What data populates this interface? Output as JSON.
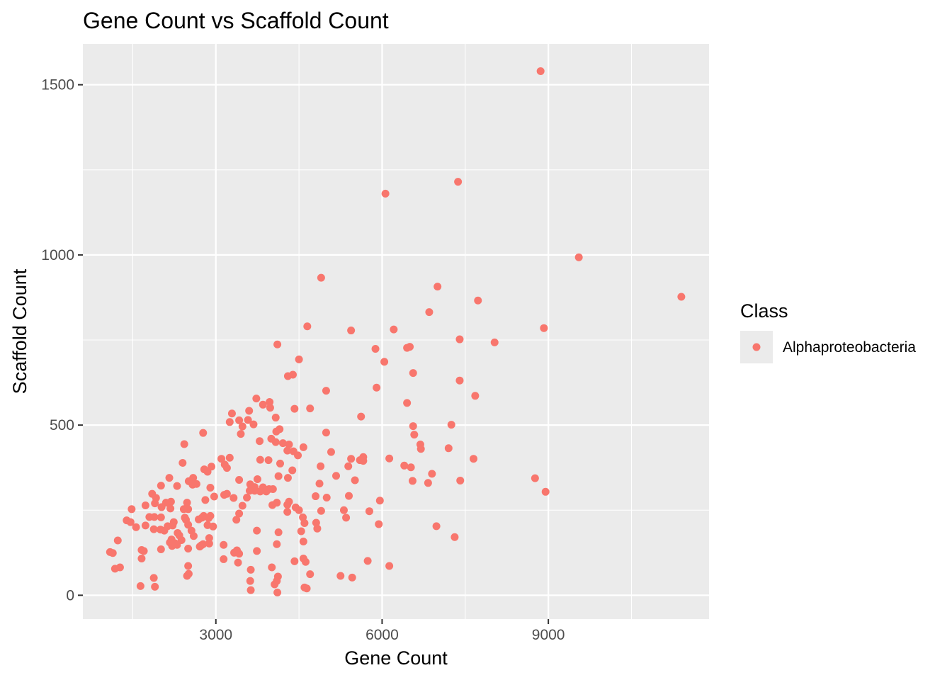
{
  "chart_data": {
    "type": "scatter",
    "title": "Gene Count vs Scaffold Count",
    "xlabel": "Gene Count",
    "ylabel": "Scaffold Count",
    "xlim": [
      600,
      11900
    ],
    "ylim": [
      -70,
      1620
    ],
    "x_ticks": [
      3000,
      6000,
      9000
    ],
    "x_tick_labels": [
      "3000",
      "6000",
      "9000"
    ],
    "x_minor_ticks": [
      1500,
      4500,
      7500,
      10500
    ],
    "y_ticks": [
      0,
      500,
      1000,
      1500
    ],
    "y_tick_labels": [
      "0",
      "500",
      "1000",
      "1500"
    ],
    "y_minor_ticks": [
      250,
      750,
      1250
    ],
    "grid": true,
    "panel_background": "#ebebeb",
    "grid_color": "#ffffff",
    "legend": {
      "position": "right",
      "title": "Class",
      "entries": [
        {
          "label": "Alphaproteobacteria",
          "color": "#f8766d"
        }
      ]
    },
    "series": [
      {
        "name": "Alphaproteobacteria",
        "color": "#f8766d",
        "points": [
          [
            8860,
            1540
          ],
          [
            7370,
            1215
          ],
          [
            6060,
            1180
          ],
          [
            9550,
            993
          ],
          [
            11400,
            877
          ],
          [
            4900,
            933
          ],
          [
            7000,
            907
          ],
          [
            7730,
            866
          ],
          [
            6850,
            832
          ],
          [
            4650,
            790
          ],
          [
            8920,
            785
          ],
          [
            5440,
            778
          ],
          [
            6210,
            781
          ],
          [
            7400,
            752
          ],
          [
            8030,
            743
          ],
          [
            4110,
            737
          ],
          [
            6450,
            727
          ],
          [
            6500,
            730
          ],
          [
            5880,
            724
          ],
          [
            4500,
            693
          ],
          [
            6040,
            686
          ],
          [
            6560,
            653
          ],
          [
            4390,
            648
          ],
          [
            4300,
            644
          ],
          [
            7400,
            631
          ],
          [
            5900,
            610
          ],
          [
            4990,
            601
          ],
          [
            7680,
            586
          ],
          [
            3730,
            578
          ],
          [
            6450,
            565
          ],
          [
            3970,
            568
          ],
          [
            3850,
            560
          ],
          [
            3980,
            551
          ],
          [
            4420,
            548
          ],
          [
            4700,
            549
          ],
          [
            3600,
            542
          ],
          [
            3290,
            534
          ],
          [
            5620,
            525
          ],
          [
            4080,
            522
          ],
          [
            3420,
            514
          ],
          [
            3580,
            515
          ],
          [
            3250,
            509
          ],
          [
            3680,
            502
          ],
          [
            7250,
            501
          ],
          [
            6560,
            497
          ],
          [
            3480,
            496
          ],
          [
            4150,
            488
          ],
          [
            4090,
            481
          ],
          [
            4990,
            478
          ],
          [
            2770,
            477
          ],
          [
            3450,
            474
          ],
          [
            6580,
            472
          ],
          [
            4000,
            460
          ],
          [
            3790,
            453
          ],
          [
            4080,
            450
          ],
          [
            4210,
            447
          ],
          [
            4320,
            443
          ],
          [
            6690,
            443
          ],
          [
            2430,
            444
          ],
          [
            7200,
            432
          ],
          [
            4580,
            435
          ],
          [
            4290,
            425
          ],
          [
            4400,
            423
          ],
          [
            6700,
            430
          ],
          [
            5080,
            421
          ],
          [
            4480,
            411
          ],
          [
            7650,
            401
          ],
          [
            5440,
            401
          ],
          [
            5660,
            406
          ],
          [
            5600,
            397
          ],
          [
            3800,
            398
          ],
          [
            3100,
            401
          ],
          [
            6130,
            402
          ],
          [
            5660,
            395
          ],
          [
            3250,
            404
          ],
          [
            3950,
            397
          ],
          [
            6400,
            381
          ],
          [
            3160,
            384
          ],
          [
            2400,
            389
          ],
          [
            4160,
            387
          ],
          [
            4890,
            379
          ],
          [
            5390,
            379
          ],
          [
            6520,
            376
          ],
          [
            2920,
            378
          ],
          [
            3200,
            374
          ],
          [
            4380,
            367
          ],
          [
            2790,
            370
          ],
          [
            2850,
            363
          ],
          [
            6900,
            357
          ],
          [
            5170,
            351
          ],
          [
            4130,
            350
          ],
          [
            2160,
            345
          ],
          [
            2590,
            345
          ],
          [
            4300,
            345
          ],
          [
            8760,
            344
          ],
          [
            3420,
            339
          ],
          [
            3750,
            341
          ],
          [
            2510,
            335
          ],
          [
            5510,
            338
          ],
          [
            6550,
            336
          ],
          [
            7410,
            337
          ],
          [
            2650,
            327
          ],
          [
            3620,
            326
          ],
          [
            4870,
            328
          ],
          [
            6830,
            330
          ],
          [
            2580,
            325
          ],
          [
            2300,
            321
          ],
          [
            2010,
            322
          ],
          [
            3700,
            318
          ],
          [
            2900,
            316
          ],
          [
            3850,
            317
          ],
          [
            3960,
            312
          ],
          [
            3610,
            307
          ],
          [
            4030,
            312
          ],
          [
            3700,
            307
          ],
          [
            3800,
            305
          ],
          [
            3910,
            305
          ],
          [
            8950,
            304
          ],
          [
            1850,
            298
          ],
          [
            3200,
            298
          ],
          [
            3150,
            295
          ],
          [
            2970,
            290
          ],
          [
            1920,
            286
          ],
          [
            3320,
            286
          ],
          [
            5000,
            287
          ],
          [
            5400,
            292
          ],
          [
            4800,
            291
          ],
          [
            3560,
            287
          ],
          [
            2810,
            280
          ],
          [
            2190,
            275
          ],
          [
            2100,
            272
          ],
          [
            4320,
            275
          ],
          [
            1900,
            270
          ],
          [
            5960,
            278
          ],
          [
            2480,
            272
          ],
          [
            4290,
            266
          ],
          [
            4020,
            265
          ],
          [
            4100,
            272
          ],
          [
            1730,
            264
          ],
          [
            3480,
            263
          ],
          [
            2020,
            259
          ],
          [
            2180,
            255
          ],
          [
            2500,
            253
          ],
          [
            4440,
            258
          ],
          [
            4500,
            250
          ],
          [
            2420,
            253
          ],
          [
            1480,
            253
          ],
          [
            5310,
            250
          ],
          [
            4900,
            248
          ],
          [
            5770,
            247
          ],
          [
            4290,
            245
          ],
          [
            3420,
            240
          ],
          [
            1890,
            230
          ],
          [
            2010,
            229
          ],
          [
            2780,
            233
          ],
          [
            1800,
            230
          ],
          [
            2900,
            233
          ],
          [
            2440,
            228
          ],
          [
            4570,
            229
          ],
          [
            2750,
            228
          ],
          [
            2870,
            227
          ],
          [
            5350,
            228
          ],
          [
            3370,
            222
          ],
          [
            2690,
            223
          ],
          [
            1390,
            220
          ],
          [
            2460,
            222
          ],
          [
            1460,
            215
          ],
          [
            2240,
            215
          ],
          [
            4600,
            212
          ],
          [
            4810,
            213
          ],
          [
            2500,
            207
          ],
          [
            2130,
            203
          ],
          [
            2220,
            205
          ],
          [
            2850,
            206
          ],
          [
            1730,
            205
          ],
          [
            1560,
            200
          ],
          [
            2950,
            202
          ],
          [
            5940,
            209
          ],
          [
            6980,
            203
          ],
          [
            4830,
            196
          ],
          [
            1880,
            194
          ],
          [
            2070,
            190
          ],
          [
            3740,
            190
          ],
          [
            2560,
            190
          ],
          [
            4130,
            185
          ],
          [
            4540,
            188
          ],
          [
            2000,
            193
          ],
          [
            2310,
            183
          ],
          [
            2340,
            176
          ],
          [
            2600,
            174
          ],
          [
            2880,
            168
          ],
          [
            7310,
            171
          ],
          [
            2200,
            164
          ],
          [
            2380,
            162
          ],
          [
            2170,
            155
          ],
          [
            2260,
            153
          ],
          [
            2880,
            152
          ],
          [
            2770,
            150
          ],
          [
            4580,
            158
          ],
          [
            1230,
            161
          ],
          [
            2740,
            147
          ],
          [
            4100,
            150
          ],
          [
            3140,
            148
          ],
          [
            2300,
            148
          ],
          [
            2210,
            145
          ],
          [
            2710,
            143
          ],
          [
            2500,
            137
          ],
          [
            3380,
            132
          ],
          [
            2010,
            135
          ],
          [
            1700,
            130
          ],
          [
            3740,
            130
          ],
          [
            1660,
            133
          ],
          [
            1090,
            127
          ],
          [
            1140,
            124
          ],
          [
            3330,
            125
          ],
          [
            3420,
            122
          ],
          [
            1660,
            108
          ],
          [
            4580,
            108
          ],
          [
            5740,
            101
          ],
          [
            4620,
            98
          ],
          [
            3400,
            96
          ],
          [
            4420,
            100
          ],
          [
            3140,
            106
          ],
          [
            6130,
            86
          ],
          [
            2500,
            86
          ],
          [
            1270,
            82
          ],
          [
            1180,
            78
          ],
          [
            4010,
            82
          ],
          [
            3630,
            75
          ],
          [
            4700,
            62
          ],
          [
            2480,
            57
          ],
          [
            2510,
            63
          ],
          [
            4120,
            55
          ],
          [
            4100,
            42
          ],
          [
            5250,
            57
          ],
          [
            5460,
            52
          ],
          [
            1880,
            51
          ],
          [
            3620,
            42
          ],
          [
            4060,
            32
          ],
          [
            1640,
            27
          ],
          [
            1900,
            25
          ],
          [
            4600,
            23
          ],
          [
            4640,
            20
          ],
          [
            3630,
            15
          ],
          [
            4110,
            8
          ]
        ]
      }
    ]
  }
}
